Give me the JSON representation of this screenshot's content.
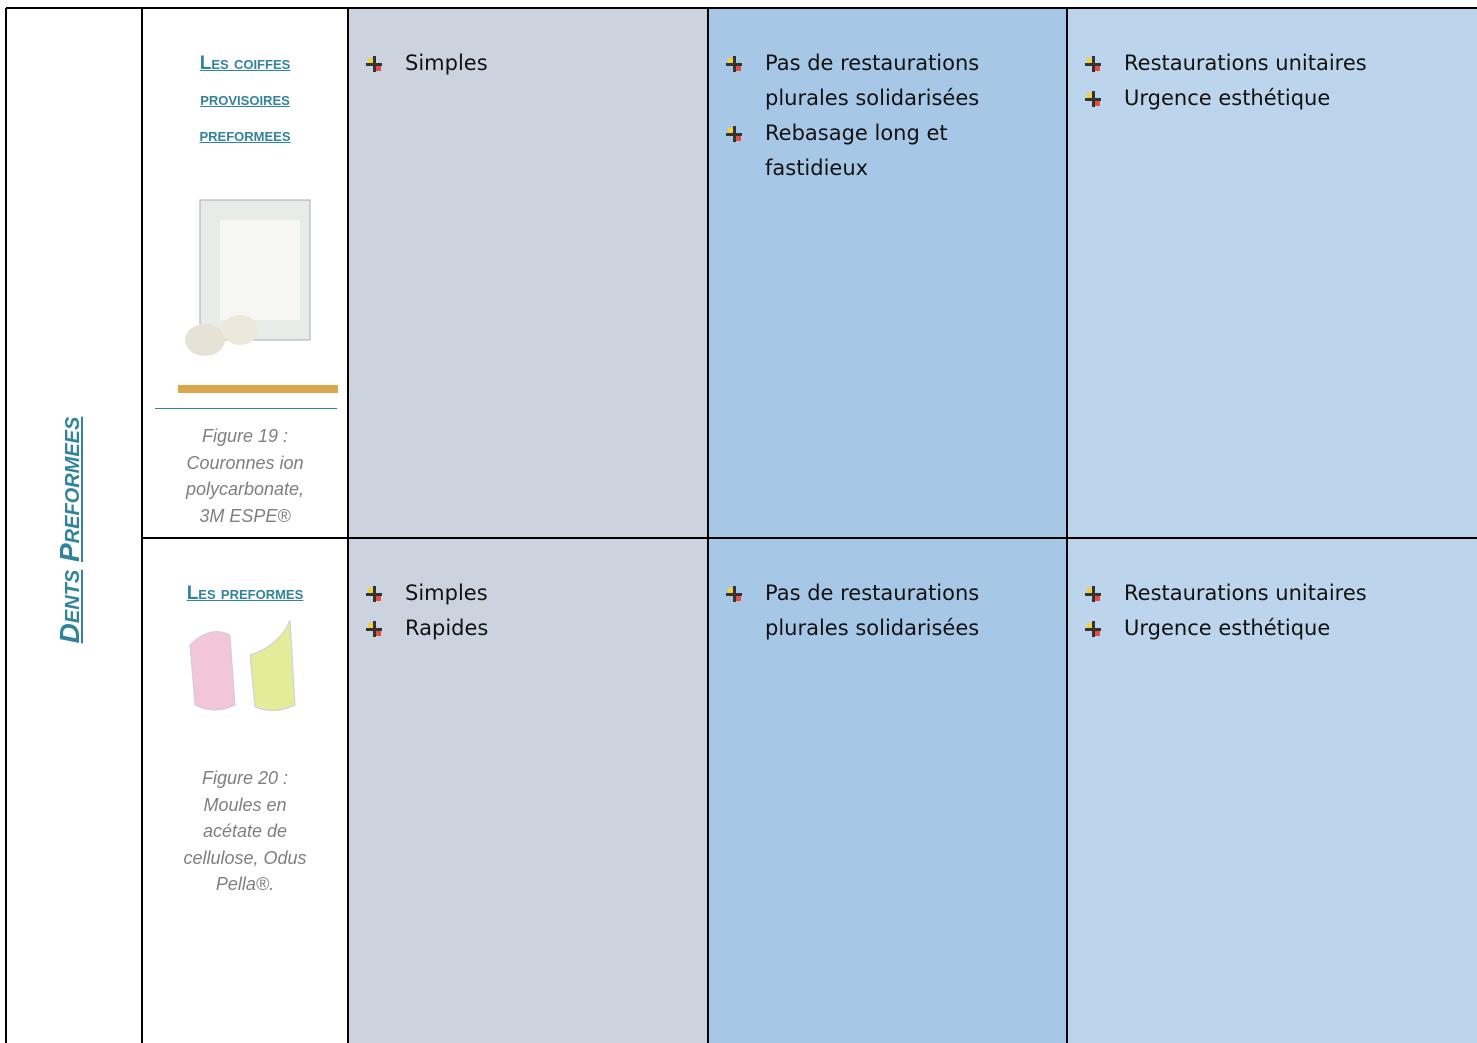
{
  "table": {
    "side_label": [
      "Dents",
      "Preformees"
    ],
    "rows": [
      {
        "title": [
          "Les coiffes",
          "provisoires",
          "preformees"
        ],
        "caption": [
          "Figure 19 :",
          "Couronnes ion",
          "polycarbonate,",
          "3M ESPE®"
        ],
        "cells": [
          [
            "Simples"
          ],
          [
            "Pas de restaurations plurales solidarisées",
            "Rebasage long et fastidieux"
          ],
          [
            "Restaurations unitaires",
            "Urgence esthétique"
          ]
        ]
      },
      {
        "title": [
          "Les preformes"
        ],
        "caption": [
          "Figure 20 :",
          "Moules en",
          "acétate de",
          "cellulose, Odus",
          "Pella®."
        ],
        "cells": [
          [
            "Simples",
            "Rapides"
          ],
          [
            "Pas de restaurations plurales solidarisées"
          ],
          [
            "Restaurations unitaires",
            "Urgence esthétique"
          ]
        ]
      }
    ]
  }
}
